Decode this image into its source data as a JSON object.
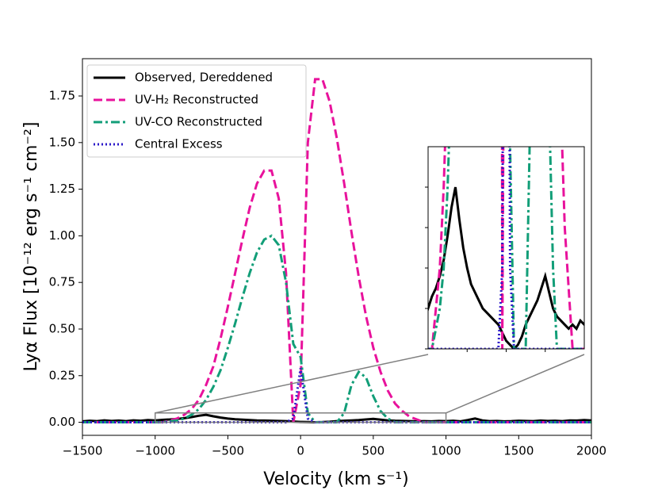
{
  "chart_data": {
    "type": "line",
    "x_label": "Velocity (km s⁻¹)",
    "y_label": "Lyα Flux [10⁻¹² erg s⁻¹ cm⁻²]",
    "xlim": [
      -1500,
      2000
    ],
    "ylim": [
      -0.07,
      1.95
    ],
    "xticks": [
      {
        "value": -1500,
        "label": "−1500"
      },
      {
        "value": -1000,
        "label": "−1000"
      },
      {
        "value": -500,
        "label": "−500"
      },
      0,
      500,
      1000,
      1500,
      2000
    ],
    "yticks": [
      {
        "value": 0,
        "label": "0.00"
      },
      {
        "value": 0.25,
        "label": "0.25"
      },
      {
        "value": 0.5,
        "label": "0.50"
      },
      {
        "value": 0.75,
        "label": "0.75"
      },
      {
        "value": 1.0,
        "label": "1.00"
      },
      {
        "value": 1.25,
        "label": "1.25"
      },
      {
        "value": 1.5,
        "label": "1.50"
      },
      {
        "value": 1.75,
        "label": "1.75"
      }
    ],
    "legend": "upper left",
    "x": [
      -1500,
      -1450,
      -1400,
      -1350,
      -1300,
      -1250,
      -1200,
      -1150,
      -1100,
      -1050,
      -1000,
      -950,
      -900,
      -850,
      -800,
      -750,
      -700,
      -650,
      -600,
      -550,
      -500,
      -450,
      -400,
      -350,
      -300,
      -250,
      -200,
      -150,
      -100,
      -50,
      0,
      50,
      100,
      150,
      200,
      250,
      300,
      350,
      400,
      450,
      500,
      550,
      600,
      650,
      700,
      750,
      800,
      850,
      900,
      950,
      1000,
      1050,
      1100,
      1150,
      1200,
      1250,
      1300,
      1350,
      1400,
      1450,
      1500,
      1550,
      1600,
      1650,
      1700,
      1750,
      1800,
      1850,
      1900,
      1950,
      2000
    ],
    "series": [
      {
        "name": "Observed, Dereddened",
        "color": "#000000",
        "style": "solid",
        "values": [
          0.005,
          0.008,
          0.006,
          0.01,
          0.007,
          0.009,
          0.006,
          0.01,
          0.008,
          0.012,
          0.01,
          0.013,
          0.015,
          0.018,
          0.022,
          0.028,
          0.035,
          0.04,
          0.032,
          0.025,
          0.02,
          0.016,
          0.014,
          0.012,
          0.01,
          0.009,
          0.008,
          0.007,
          0.006,
          0.004,
          0.002,
          0.001,
          0.0,
          0.001,
          0.003,
          0.006,
          0.008,
          0.01,
          0.012,
          0.015,
          0.018,
          0.014,
          0.01,
          0.008,
          0.007,
          0.006,
          0.005,
          0.006,
          0.005,
          0.007,
          0.006,
          0.008,
          0.005,
          0.012,
          0.02,
          0.01,
          0.006,
          0.007,
          0.005,
          0.006,
          0.008,
          0.007,
          0.006,
          0.009,
          0.007,
          0.008,
          0.006,
          0.01,
          0.009,
          0.012,
          0.01
        ]
      },
      {
        "name": "UV-H₂ Reconstructed",
        "color": "#e8129c",
        "style": "dashed",
        "values": [
          0,
          0,
          0,
          0,
          0,
          0,
          0,
          0,
          0,
          0,
          0,
          0,
          0.01,
          0.02,
          0.04,
          0.07,
          0.12,
          0.2,
          0.3,
          0.45,
          0.62,
          0.8,
          0.98,
          1.15,
          1.28,
          1.35,
          1.35,
          1.2,
          0.8,
          0.0,
          0.2,
          1.5,
          1.84,
          1.84,
          1.72,
          1.52,
          1.28,
          1.02,
          0.78,
          0.57,
          0.4,
          0.27,
          0.17,
          0.1,
          0.06,
          0.03,
          0.015,
          0,
          0,
          0,
          0,
          0,
          0,
          0,
          0,
          0,
          0,
          0,
          0,
          0,
          0,
          0,
          0,
          0,
          0,
          0,
          0,
          0,
          0,
          0,
          0
        ]
      },
      {
        "name": "UV-CO Reconstructed",
        "color": "#129e78",
        "style": "dashdot",
        "values": [
          0,
          0,
          0,
          0,
          0,
          0,
          0,
          0,
          0,
          0,
          0,
          0,
          0.005,
          0.01,
          0.02,
          0.04,
          0.07,
          0.12,
          0.19,
          0.28,
          0.4,
          0.53,
          0.67,
          0.8,
          0.91,
          0.98,
          1.0,
          0.95,
          0.75,
          0.42,
          0.35,
          0.05,
          0,
          0,
          0,
          0,
          0.05,
          0.2,
          0.27,
          0.24,
          0.14,
          0.06,
          0.02,
          0,
          0,
          0,
          0,
          0,
          0,
          0,
          0,
          0,
          0,
          0,
          0,
          0,
          0,
          0,
          0,
          0,
          0,
          0,
          0,
          0,
          0,
          0,
          0,
          0,
          0,
          0,
          0
        ]
      },
      {
        "name": "Central Excess",
        "color": "#2b18c8",
        "style": "dotted",
        "values": [
          0,
          0,
          0,
          0,
          0,
          0,
          0,
          0,
          0,
          0,
          0,
          0,
          0,
          0,
          0,
          0,
          0,
          0,
          0,
          0,
          0,
          0,
          0,
          0,
          0,
          0,
          0,
          0,
          0,
          0.02,
          0.29,
          0.02,
          0,
          0,
          0,
          0,
          0,
          0,
          0,
          0,
          0,
          0,
          0,
          0,
          0,
          0,
          0,
          0,
          0,
          0,
          0,
          0,
          0,
          0,
          0,
          0,
          0,
          0,
          0,
          0,
          0,
          0,
          0,
          0,
          0,
          0,
          0,
          0,
          0,
          0,
          0
        ]
      }
    ],
    "inset": {
      "xlim": [
        -1000,
        1000
      ],
      "ylim": [
        0,
        0.05
      ],
      "xticks": [
        -500,
        0,
        500
      ],
      "yticks": [
        0,
        0.01,
        0.02,
        0.03,
        0.04
      ]
    }
  }
}
